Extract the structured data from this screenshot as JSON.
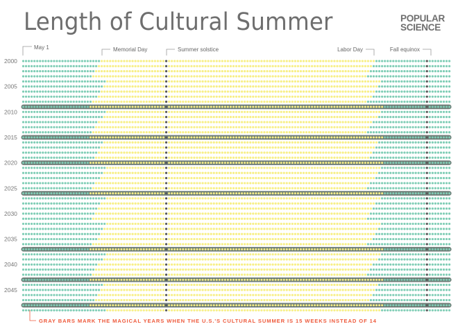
{
  "title": "Length of Cultural Summer",
  "logo": {
    "line1": "POPULAR",
    "line2": "SCIENCE"
  },
  "chart_data": {
    "type": "dot-matrix",
    "title": "Length of Cultural Summer",
    "x_range": {
      "start": "May 1",
      "end": "Sep 30"
    },
    "annotations": [
      {
        "label": "May 1",
        "month": 5,
        "day": 1
      },
      {
        "label": "Memorial Day"
      },
      {
        "label": "Summer solstice",
        "month": 6,
        "day": 21
      },
      {
        "label": "Labor Day"
      },
      {
        "label": "Fall equinox",
        "month": 9,
        "day": 22
      }
    ],
    "year_tick_labels": [
      "2000",
      "2005",
      "2010",
      "2015",
      "2020",
      "2025",
      "2030",
      "2035",
      "2040",
      "2045"
    ],
    "rows": [
      {
        "year": 2000,
        "memorial_day": "May 29",
        "labor_day": "Sep 4"
      },
      {
        "year": 2001,
        "memorial_day": "May 28",
        "labor_day": "Sep 3"
      },
      {
        "year": 2002,
        "memorial_day": "May 27",
        "labor_day": "Sep 2"
      },
      {
        "year": 2003,
        "memorial_day": "May 26",
        "labor_day": "Sep 1"
      },
      {
        "year": 2004,
        "memorial_day": "May 31",
        "labor_day": "Sep 6"
      },
      {
        "year": 2005,
        "memorial_day": "May 30",
        "labor_day": "Sep 5"
      },
      {
        "year": 2006,
        "memorial_day": "May 29",
        "labor_day": "Sep 4"
      },
      {
        "year": 2007,
        "memorial_day": "May 28",
        "labor_day": "Sep 3"
      },
      {
        "year": 2008,
        "memorial_day": "May 26",
        "labor_day": "Sep 1"
      },
      {
        "year": 2009,
        "memorial_day": "May 25",
        "labor_day": "Sep 7",
        "weeks": 15
      },
      {
        "year": 2010,
        "memorial_day": "May 31",
        "labor_day": "Sep 6"
      },
      {
        "year": 2011,
        "memorial_day": "May 30",
        "labor_day": "Sep 5"
      },
      {
        "year": 2012,
        "memorial_day": "May 28",
        "labor_day": "Sep 3"
      },
      {
        "year": 2013,
        "memorial_day": "May 27",
        "labor_day": "Sep 2"
      },
      {
        "year": 2014,
        "memorial_day": "May 26",
        "labor_day": "Sep 1"
      },
      {
        "year": 2015,
        "memorial_day": "May 25",
        "labor_day": "Sep 7",
        "weeks": 15
      },
      {
        "year": 2016,
        "memorial_day": "May 30",
        "labor_day": "Sep 5"
      },
      {
        "year": 2017,
        "memorial_day": "May 29",
        "labor_day": "Sep 4"
      },
      {
        "year": 2018,
        "memorial_day": "May 28",
        "labor_day": "Sep 3"
      },
      {
        "year": 2019,
        "memorial_day": "May 27",
        "labor_day": "Sep 2"
      },
      {
        "year": 2020,
        "memorial_day": "May 25",
        "labor_day": "Sep 7",
        "weeks": 15
      },
      {
        "year": 2021,
        "memorial_day": "May 31",
        "labor_day": "Sep 6"
      },
      {
        "year": 2022,
        "memorial_day": "May 30",
        "labor_day": "Sep 5"
      },
      {
        "year": 2023,
        "memorial_day": "May 29",
        "labor_day": "Sep 4"
      },
      {
        "year": 2024,
        "memorial_day": "May 27",
        "labor_day": "Sep 2"
      },
      {
        "year": 2025,
        "memorial_day": "May 26",
        "labor_day": "Sep 1"
      },
      {
        "year": 2026,
        "memorial_day": "May 25",
        "labor_day": "Sep 7",
        "weeks": 15
      },
      {
        "year": 2027,
        "memorial_day": "May 31",
        "labor_day": "Sep 6"
      },
      {
        "year": 2028,
        "memorial_day": "May 29",
        "labor_day": "Sep 4"
      },
      {
        "year": 2029,
        "memorial_day": "May 28",
        "labor_day": "Sep 3"
      },
      {
        "year": 2030,
        "memorial_day": "May 27",
        "labor_day": "Sep 2"
      },
      {
        "year": 2031,
        "memorial_day": "May 26",
        "labor_day": "Sep 1"
      },
      {
        "year": 2032,
        "memorial_day": "May 31",
        "labor_day": "Sep 6"
      },
      {
        "year": 2033,
        "memorial_day": "May 30",
        "labor_day": "Sep 5"
      },
      {
        "year": 2034,
        "memorial_day": "May 29",
        "labor_day": "Sep 4"
      },
      {
        "year": 2035,
        "memorial_day": "May 28",
        "labor_day": "Sep 3"
      },
      {
        "year": 2036,
        "memorial_day": "May 26",
        "labor_day": "Sep 1"
      },
      {
        "year": 2037,
        "memorial_day": "May 25",
        "labor_day": "Sep 7",
        "weeks": 15
      },
      {
        "year": 2038,
        "memorial_day": "May 31",
        "labor_day": "Sep 6"
      },
      {
        "year": 2039,
        "memorial_day": "May 30",
        "labor_day": "Sep 5"
      },
      {
        "year": 2040,
        "memorial_day": "May 28",
        "labor_day": "Sep 3"
      },
      {
        "year": 2041,
        "memorial_day": "May 27",
        "labor_day": "Sep 2"
      },
      {
        "year": 2042,
        "memorial_day": "May 26",
        "labor_day": "Sep 1"
      },
      {
        "year": 2043,
        "memorial_day": "May 25",
        "labor_day": "Sep 7",
        "weeks": 15
      },
      {
        "year": 2044,
        "memorial_day": "May 30",
        "labor_day": "Sep 5"
      },
      {
        "year": 2045,
        "memorial_day": "May 29",
        "labor_day": "Sep 4"
      },
      {
        "year": 2046,
        "memorial_day": "May 28",
        "labor_day": "Sep 3"
      },
      {
        "year": 2047,
        "memorial_day": "May 27",
        "labor_day": "Sep 2"
      },
      {
        "year": 2048,
        "memorial_day": "May 25",
        "labor_day": "Sep 7",
        "weeks": 15
      },
      {
        "year": 2049,
        "memorial_day": "May 31",
        "labor_day": "Sep 6"
      }
    ],
    "footnote": "GRAY BARS MARK THE MAGICAL YEARS WHEN THE U.S.'S CULTURAL SUMMER IS 15 WEEKS INSTEAD OF 14",
    "colors": {
      "non_summer": "#7fcdb5",
      "summer": "#f7ef86",
      "highlight_bar": "#6f7e78",
      "marker_dot": "#555555",
      "footnote": "#ee5a3c"
    }
  }
}
